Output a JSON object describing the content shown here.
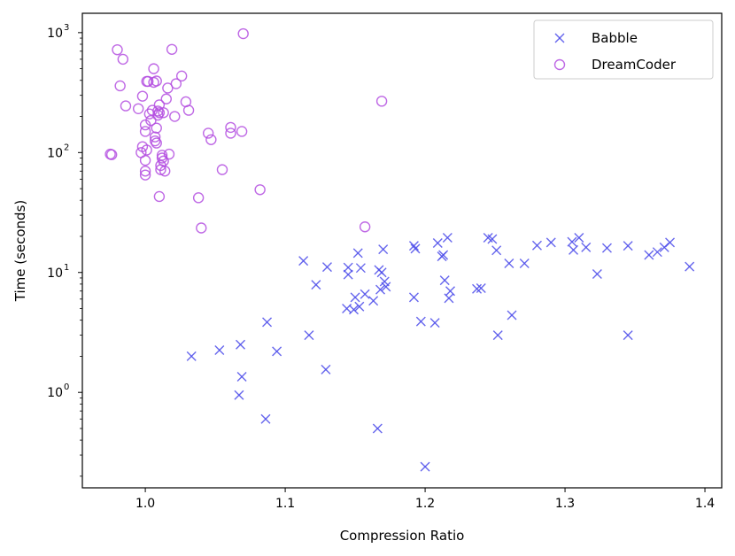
{
  "chart_data": {
    "type": "scatter",
    "title": "",
    "xlabel": "Compression Ratio",
    "ylabel": "Time (seconds)",
    "xlim": [
      0.955,
      1.412
    ],
    "ylim": [
      0.16,
      1450
    ],
    "yscale": "log",
    "grid": false,
    "legend_position": "top-right",
    "xticks": [
      1.0,
      1.1,
      1.2,
      1.3,
      1.4
    ],
    "xtick_labels": [
      "1.0",
      "1.1",
      "1.2",
      "1.3",
      "1.4"
    ],
    "yticks": [
      1,
      10,
      100,
      1000
    ],
    "ytick_labels": [
      {
        "base": "10",
        "exp": "0"
      },
      {
        "base": "10",
        "exp": "1"
      },
      {
        "base": "10",
        "exp": "2"
      },
      {
        "base": "10",
        "exp": "3"
      }
    ],
    "series": [
      {
        "name": "Babble",
        "marker": "x",
        "color": "#4b4bea",
        "points": [
          [
            1.033,
            2.0
          ],
          [
            1.053,
            2.25
          ],
          [
            1.067,
            0.95
          ],
          [
            1.068,
            2.5
          ],
          [
            1.069,
            1.35
          ],
          [
            1.086,
            0.6
          ],
          [
            1.087,
            3.85
          ],
          [
            1.094,
            2.2
          ],
          [
            1.113,
            12.5
          ],
          [
            1.117,
            3.0
          ],
          [
            1.122,
            7.9
          ],
          [
            1.129,
            1.55
          ],
          [
            1.13,
            11.1
          ],
          [
            1.144,
            5.0
          ],
          [
            1.145,
            9.6
          ],
          [
            1.145,
            11.0
          ],
          [
            1.149,
            4.9
          ],
          [
            1.15,
            6.2
          ],
          [
            1.152,
            14.5
          ],
          [
            1.153,
            5.2
          ],
          [
            1.154,
            10.9
          ],
          [
            1.157,
            6.6
          ],
          [
            1.163,
            5.8
          ],
          [
            1.166,
            0.5
          ],
          [
            1.167,
            10.5
          ],
          [
            1.168,
            7.2
          ],
          [
            1.169,
            10.0
          ],
          [
            1.17,
            15.6
          ],
          [
            1.171,
            8.4
          ],
          [
            1.172,
            7.6
          ],
          [
            1.192,
            16.7
          ],
          [
            1.192,
            6.2
          ],
          [
            1.193,
            15.8
          ],
          [
            1.197,
            3.9
          ],
          [
            1.2,
            0.24
          ],
          [
            1.207,
            3.8
          ],
          [
            1.209,
            17.6
          ],
          [
            1.212,
            13.6
          ],
          [
            1.213,
            14.0
          ],
          [
            1.214,
            8.6
          ],
          [
            1.216,
            19.5
          ],
          [
            1.217,
            6.1
          ],
          [
            1.218,
            7.0
          ],
          [
            1.237,
            7.3
          ],
          [
            1.24,
            7.4
          ],
          [
            1.245,
            19.5
          ],
          [
            1.248,
            19.0
          ],
          [
            1.251,
            15.3
          ],
          [
            1.252,
            3.0
          ],
          [
            1.26,
            11.9
          ],
          [
            1.262,
            4.4
          ],
          [
            1.271,
            11.9
          ],
          [
            1.28,
            16.8
          ],
          [
            1.29,
            17.8
          ],
          [
            1.305,
            18.0
          ],
          [
            1.306,
            15.4
          ],
          [
            1.31,
            19.5
          ],
          [
            1.315,
            16.2
          ],
          [
            1.323,
            9.7
          ],
          [
            1.33,
            16.0
          ],
          [
            1.345,
            16.7
          ],
          [
            1.345,
            3.0
          ],
          [
            1.36,
            14.0
          ],
          [
            1.366,
            14.8
          ],
          [
            1.371,
            16.2
          ],
          [
            1.375,
            17.8
          ],
          [
            1.389,
            11.2
          ]
        ]
      },
      {
        "name": "DreamCoder",
        "marker": "o",
        "color": "#b44fe0",
        "points": [
          [
            0.975,
            97
          ],
          [
            0.976,
            96
          ],
          [
            0.98,
            720
          ],
          [
            0.982,
            360
          ],
          [
            0.984,
            600
          ],
          [
            0.986,
            245
          ],
          [
            0.995,
            232
          ],
          [
            0.997,
            100
          ],
          [
            0.998,
            112
          ],
          [
            0.998,
            295
          ],
          [
            1.0,
            150
          ],
          [
            1.0,
            170
          ],
          [
            1.0,
            70
          ],
          [
            1.0,
            65
          ],
          [
            1.0,
            86
          ],
          [
            1.001,
            105
          ],
          [
            1.001,
            392
          ],
          [
            1.002,
            392
          ],
          [
            1.003,
            210
          ],
          [
            1.004,
            185
          ],
          [
            1.005,
            225
          ],
          [
            1.006,
            500
          ],
          [
            1.006,
            385
          ],
          [
            1.007,
            135
          ],
          [
            1.007,
            125
          ],
          [
            1.008,
            395
          ],
          [
            1.008,
            160
          ],
          [
            1.008,
            120
          ],
          [
            1.009,
            222
          ],
          [
            1.009,
            205
          ],
          [
            1.01,
            215
          ],
          [
            1.01,
            250
          ],
          [
            1.01,
            43
          ],
          [
            1.011,
            78
          ],
          [
            1.011,
            72
          ],
          [
            1.012,
            90
          ],
          [
            1.012,
            95
          ],
          [
            1.013,
            85
          ],
          [
            1.013,
            215
          ],
          [
            1.014,
            70
          ],
          [
            1.015,
            280
          ],
          [
            1.016,
            345
          ],
          [
            1.017,
            97
          ],
          [
            1.019,
            725
          ],
          [
            1.021,
            200
          ],
          [
            1.022,
            375
          ],
          [
            1.026,
            435
          ],
          [
            1.029,
            265
          ],
          [
            1.031,
            225
          ],
          [
            1.038,
            42
          ],
          [
            1.04,
            23.5
          ],
          [
            1.045,
            145
          ],
          [
            1.047,
            128
          ],
          [
            1.055,
            72
          ],
          [
            1.061,
            162
          ],
          [
            1.061,
            145
          ],
          [
            1.069,
            150
          ],
          [
            1.07,
            980
          ],
          [
            1.082,
            49
          ],
          [
            1.157,
            24
          ],
          [
            1.169,
            268
          ]
        ]
      }
    ]
  }
}
